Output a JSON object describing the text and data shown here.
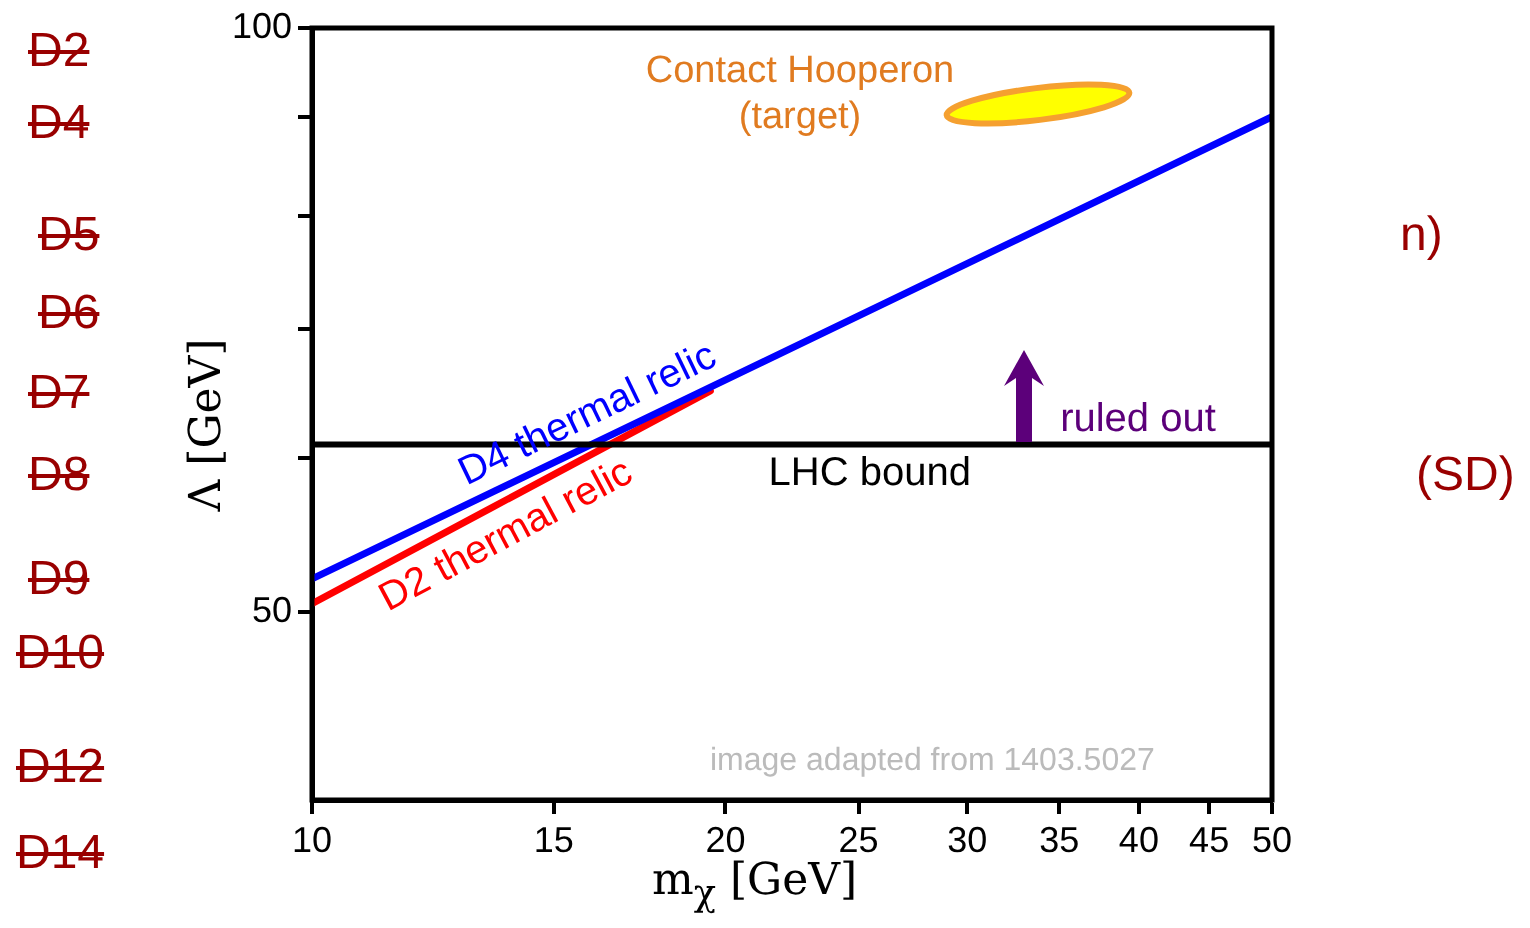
{
  "chart_data": {
    "type": "line",
    "xlabel": "m$_{χ}$ [GeV]",
    "ylabel": "Λ [GeV]",
    "log": "xy",
    "grid": false,
    "legend": false,
    "marker": "none",
    "line_style": "solid",
    "xlim": [
      10,
      50
    ],
    "xticks": [
      10,
      15,
      20,
      25,
      30,
      35,
      40,
      45,
      50
    ],
    "ylim": [
      40,
      100
    ],
    "yticks": [
      50,
      {
        "value": 60,
        "label": null
      },
      {
        "value": 70,
        "label": null
      },
      {
        "value": 80,
        "label": null
      },
      {
        "value": 90,
        "label": null
      },
      100
    ],
    "series": [
      {
        "name": "D4 thermal relic",
        "color": "#0000ff",
        "x": [
          10,
          50
        ],
        "values": [
          52,
          90
        ]
      },
      {
        "name": "D2 thermal relic",
        "color": "#ff0000",
        "x": [
          10,
          19.5
        ],
        "values": [
          50.5,
          65
        ]
      }
    ],
    "ref_lines": [
      {
        "axis": "y",
        "value": 61,
        "label": "LHC bound",
        "color": "#000000"
      }
    ],
    "annotations": [
      "image adapted from 1403.5027",
      "D2",
      "D4",
      "D5",
      "D6",
      "D7",
      "D8",
      "D9",
      "D10",
      "D12",
      "D14",
      "n)",
      "(SD)",
      "Contact Hooperon (target)",
      {
        "text": "ruled out",
        "x": 33,
        "y": 61
      }
    ]
  }
}
